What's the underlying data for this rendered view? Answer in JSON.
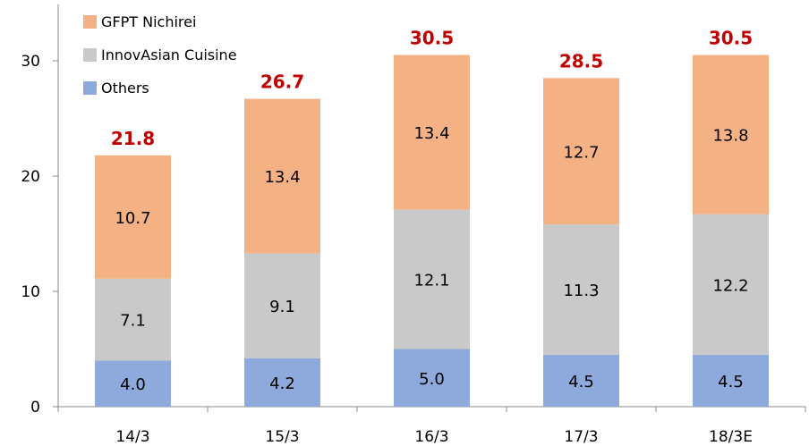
{
  "chart_data": {
    "type": "bar",
    "stacked": true,
    "categories": [
      "14/3",
      "15/3",
      "16/3",
      "17/3",
      "18/3E"
    ],
    "series": [
      {
        "name": "Others",
        "values": [
          4.0,
          4.2,
          5.0,
          4.5,
          4.5
        ],
        "color": "#8EA9DB"
      },
      {
        "name": "InnovAsian Cuisine",
        "values": [
          7.1,
          9.1,
          12.1,
          11.3,
          12.2
        ],
        "color": "#C9C9C9"
      },
      {
        "name": "GFPT Nichirei",
        "values": [
          10.7,
          13.4,
          13.4,
          12.7,
          13.8
        ],
        "color": "#F4B183"
      }
    ],
    "value_labels": [
      [
        "4.0",
        "4.2",
        "5.0",
        "4.5",
        "4.5"
      ],
      [
        "7.1",
        "9.1",
        "12.1",
        "11.3",
        "12.2"
      ],
      [
        "10.7",
        "13.4",
        "13.4",
        "12.7",
        "13.8"
      ]
    ],
    "totals": [
      "21.8",
      "26.7",
      "30.5",
      "28.5",
      "30.5"
    ],
    "total_color": "#C00000",
    "y_ticks": [
      0,
      10,
      20,
      30
    ],
    "ylim": [
      0,
      35
    ],
    "legend_order": [
      "GFPT Nichirei",
      "InnovAsian Cuisine",
      "Others"
    ],
    "legend_position": "top-left",
    "grid": false,
    "title": "",
    "xlabel": "",
    "ylabel": ""
  }
}
